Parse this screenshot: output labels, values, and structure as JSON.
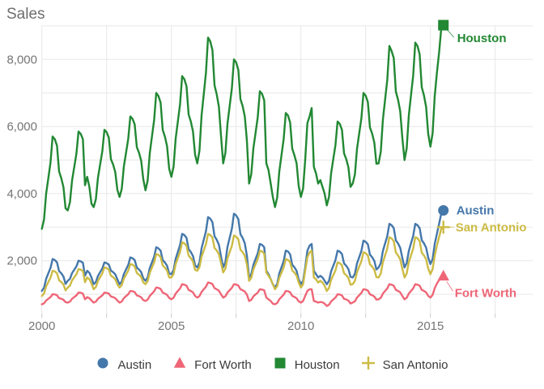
{
  "title": "Sales",
  "colors": {
    "austin": "#4477AA",
    "fort_worth": "#EE6677",
    "houston": "#228833",
    "san_antonio": "#CCBB44",
    "grid": "#e8e8e8",
    "tick": "#c8c8c8",
    "axis_text": "#757575",
    "title_text": "#6e6e6e",
    "legend_text": "#3a3a3a",
    "background": "#ffffff"
  },
  "axis": {
    "x": {
      "tick_labels": [
        "2000",
        "2005",
        "2010",
        "2015"
      ],
      "tick_years": [
        2000,
        2005,
        2010,
        2015
      ],
      "grid_years": [
        2000,
        2002.5,
        2005,
        2007.5,
        2010,
        2012.5,
        2015,
        2017.5
      ]
    },
    "y": {
      "tick_labels": [
        "2,000",
        "4,000",
        "6,000",
        "8,000"
      ],
      "tick_values": [
        2000,
        4000,
        6000,
        8000
      ],
      "grid_values": [
        1000,
        2000,
        3000,
        4000,
        5000,
        6000,
        7000,
        8000,
        9000
      ]
    }
  },
  "legend": {
    "items": [
      {
        "label": "Austin",
        "shape": "circle",
        "color": "#4477AA"
      },
      {
        "label": "Fort Worth",
        "shape": "triangle",
        "color": "#EE6677"
      },
      {
        "label": "Houston",
        "shape": "square",
        "color": "#228833"
      },
      {
        "label": "San Antonio",
        "shape": "cross",
        "color": "#CCBB44"
      }
    ]
  },
  "chart_data": {
    "type": "line",
    "title": "Sales",
    "xlabel": "",
    "ylabel": "Sales",
    "x_start_year": 2000,
    "x_interval": "monthly",
    "x_range": [
      2000,
      2018.9
    ],
    "y_range": [
      400,
      9400
    ],
    "grid": true,
    "legend_position": "bottom",
    "end_labels": true,
    "series": [
      {
        "name": "Austin",
        "color": "#4477AA",
        "shape": "circle",
        "values": [
          1100,
          1195,
          1460,
          1625,
          1785,
          2050,
          2020,
          1955,
          1690,
          1625,
          1530,
          1310,
          1400,
          1460,
          1630,
          1730,
          1830,
          2000,
          1980,
          1940,
          1550,
          1700,
          1640,
          1500,
          1300,
          1365,
          1545,
          1660,
          1770,
          1950,
          1930,
          1885,
          1705,
          1660,
          1595,
          1445,
          1300,
          1380,
          1605,
          1740,
          1875,
          2100,
          2075,
          2020,
          1795,
          1740,
          1660,
          1475,
          1400,
          1500,
          1780,
          1950,
          2120,
          2400,
          2370,
          2300,
          2020,
          1950,
          1850,
          1620,
          1600,
          1720,
          2055,
          2260,
          2465,
          2800,
          2765,
          2680,
          2345,
          2260,
          2140,
          1865,
          1800,
          1950,
          2370,
          2625,
          2880,
          3300,
          3255,
          3150,
          2730,
          2625,
          2475,
          2130,
          1800,
          1960,
          2410,
          2680,
          2950,
          3400,
          3350,
          3240,
          2790,
          2680,
          2520,
          2150,
          1500,
          1600,
          1880,
          2050,
          2220,
          2500,
          2470,
          2400,
          1700,
          1600,
          1450,
          1300,
          1200,
          1310,
          1620,
          1805,
          1990,
          2300,
          2275,
          2190,
          1880,
          1805,
          1695,
          1440,
          1300,
          1400,
          1800,
          2300,
          2450,
          2500,
          1700,
          1600,
          1500,
          1550,
          1500,
          1400,
          1300,
          1400,
          1680,
          1850,
          2020,
          2300,
          2270,
          2200,
          1920,
          1850,
          1750,
          1520,
          1500,
          1610,
          1920,
          2105,
          2290,
          2600,
          2565,
          2490,
          2180,
          2105,
          1995,
          1740,
          1800,
          1930,
          2295,
          2515,
          2735,
          3100,
          3060,
          2970,
          2605,
          2515,
          2385,
          2085,
          1800,
          1930,
          2290,
          2520,
          2740,
          3100,
          3060,
          2970,
          2610,
          2520,
          2390,
          2090,
          1900,
          2050,
          2500,
          2800,
          3100,
          3400,
          3500
        ]
      },
      {
        "name": "Fort Worth",
        "color": "#EE6677",
        "shape": "triangle",
        "values": [
          700,
          730,
          815,
          865,
          915,
          1000,
          995,
          970,
          885,
          865,
          835,
          765,
          750,
          780,
          865,
          915,
          965,
          1050,
          1045,
          1020,
          850,
          915,
          885,
          815,
          750,
          780,
          865,
          915,
          965,
          1050,
          1040,
          1020,
          935,
          915,
          885,
          815,
          750,
          785,
          885,
          945,
          1000,
          1100,
          1090,
          1065,
          965,
          945,
          910,
          825,
          800,
          840,
          950,
          1020,
          1090,
          1200,
          1190,
          1160,
          1050,
          1020,
          980,
          890,
          850,
          895,
          1020,
          1100,
          1175,
          1300,
          1285,
          1255,
          1130,
          1100,
          1055,
          950,
          900,
          945,
          1070,
          1150,
          1225,
          1350,
          1335,
          1305,
          1180,
          1150,
          1105,
          1000,
          900,
          940,
          1050,
          1120,
          1190,
          1300,
          1290,
          1260,
          1150,
          1120,
          1080,
          990,
          800,
          835,
          935,
          995,
          1050,
          1150,
          1140,
          1115,
          900,
          850,
          800,
          720,
          700,
          740,
          850,
          920,
          990,
          1100,
          1090,
          1060,
          950,
          920,
          880,
          790,
          750,
          800,
          950,
          1100,
          1150,
          1150,
          800,
          780,
          750,
          770,
          760,
          720,
          650,
          685,
          785,
          845,
          900,
          1000,
          990,
          965,
          865,
          845,
          810,
          725,
          750,
          790,
          900,
          970,
          1040,
          1150,
          1140,
          1110,
          1000,
          970,
          930,
          840,
          850,
          895,
          1020,
          1100,
          1175,
          1300,
          1285,
          1255,
          1130,
          1100,
          1055,
          950,
          850,
          895,
          1020,
          1100,
          1175,
          1300,
          1285,
          1255,
          1130,
          1100,
          1055,
          950,
          900,
          980,
          1180,
          1320,
          1420,
          1520,
          1550
        ]
      },
      {
        "name": "Houston",
        "color": "#228833",
        "shape": "square",
        "values": [
          2950,
          3230,
          4000,
          4460,
          4930,
          5700,
          5620,
          5430,
          4660,
          4460,
          4190,
          3560,
          3500,
          3740,
          4390,
          4790,
          5190,
          5850,
          5780,
          5620,
          4250,
          4500,
          4200,
          3700,
          3600,
          3830,
          4470,
          4870,
          5260,
          5900,
          5830,
          5670,
          5030,
          4870,
          4640,
          4110,
          3900,
          4140,
          4810,
          5220,
          5630,
          6300,
          6230,
          6060,
          5390,
          5220,
          4980,
          4430,
          4100,
          4390,
          5200,
          5700,
          6190,
          7000,
          6910,
          6710,
          5900,
          5700,
          5410,
          4740,
          4500,
          4800,
          5640,
          6150,
          6660,
          7500,
          7410,
          7200,
          6360,
          6150,
          5850,
          5160,
          4900,
          5280,
          6330,
          6960,
          7600,
          8650,
          8540,
          8280,
          7230,
          6960,
          6590,
          5730,
          4900,
          5210,
          6080,
          6610,
          7130,
          8000,
          7910,
          7690,
          6820,
          6610,
          6300,
          5580,
          4300,
          4580,
          5350,
          5810,
          6280,
          7050,
          6970,
          6780,
          4900,
          4700,
          4300,
          3900,
          3600,
          3880,
          4660,
          5140,
          5620,
          6400,
          6330,
          6120,
          5340,
          5140,
          4900,
          4220,
          3900,
          4150,
          5000,
          6100,
          6300,
          6550,
          4800,
          4600,
          4300,
          4400,
          4200,
          4000,
          3650,
          3900,
          4600,
          5030,
          5450,
          6150,
          6080,
          5900,
          5200,
          5030,
          4780,
          4200,
          4300,
          4570,
          5330,
          5790,
          6240,
          7000,
          6920,
          6730,
          5970,
          5790,
          5520,
          4890,
          4900,
          5250,
          6210,
          6800,
          7390,
          8400,
          8250,
          8040,
          7040,
          6800,
          6450,
          5660,
          5000,
          5350,
          6330,
          6930,
          7520,
          8500,
          8400,
          8150,
          7170,
          6930,
          6580,
          5770,
          5400,
          5800,
          6900,
          7600,
          8200,
          8900,
          9020
        ]
      },
      {
        "name": "San Antonio",
        "color": "#CCBB44",
        "shape": "cross",
        "values": [
          950,
          1025,
          1235,
          1365,
          1490,
          1700,
          1680,
          1625,
          1415,
          1365,
          1290,
          1115,
          1200,
          1255,
          1410,
          1505,
          1595,
          1750,
          1735,
          1695,
          1360,
          1500,
          1450,
          1320,
          1150,
          1215,
          1395,
          1510,
          1620,
          1800,
          1780,
          1735,
          1555,
          1510,
          1445,
          1295,
          1200,
          1270,
          1465,
          1585,
          1705,
          1900,
          1880,
          1830,
          1635,
          1585,
          1515,
          1355,
          1300,
          1390,
          1640,
          1795,
          1950,
          2200,
          2175,
          2110,
          1860,
          1795,
          1705,
          1500,
          1500,
          1605,
          1900,
          2080,
          2255,
          2550,
          2520,
          2445,
          2150,
          2080,
          1975,
          1730,
          1700,
          1810,
          2120,
          2305,
          2490,
          2800,
          2765,
          2690,
          2380,
          2305,
          2195,
          1940,
          1650,
          1760,
          2070,
          2255,
          2440,
          2750,
          2715,
          2640,
          2330,
          2255,
          2145,
          1890,
          1400,
          1490,
          1740,
          1895,
          2050,
          2300,
          2275,
          2210,
          1650,
          1550,
          1450,
          1300,
          1150,
          1240,
          1490,
          1645,
          1800,
          2050,
          2025,
          1960,
          1710,
          1645,
          1555,
          1350,
          1200,
          1300,
          1700,
          2100,
          2250,
          2300,
          1500,
          1450,
          1350,
          1400,
          1350,
          1250,
          1100,
          1185,
          1425,
          1570,
          1710,
          1950,
          1925,
          1865,
          1625,
          1570,
          1485,
          1285,
          1300,
          1395,
          1660,
          1825,
          1985,
          2250,
          2225,
          2155,
          1890,
          1825,
          1730,
          1510,
          1500,
          1620,
          1955,
          2160,
          2365,
          2700,
          2665,
          2580,
          2245,
          2160,
          2040,
          1765,
          1500,
          1620,
          1960,
          2160,
          2360,
          2700,
          2670,
          2580,
          2240,
          2160,
          2040,
          1760,
          1600,
          1750,
          2150,
          2450,
          2700,
          2950,
          3000
        ]
      }
    ]
  }
}
